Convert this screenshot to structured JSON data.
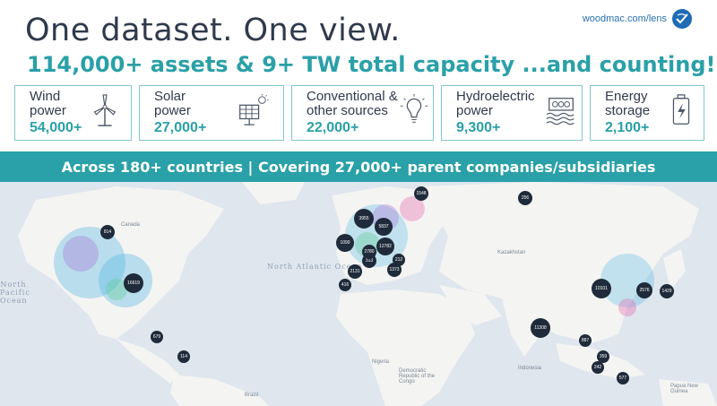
{
  "header": {
    "headline": "One dataset. One view.",
    "subhead": "114,000+ assets & 9+ TW total capacity ...and counting!",
    "brand_text": "woodmac.com/lens"
  },
  "cards": [
    {
      "label": "Wind power",
      "value": "54,000+",
      "icon": "wind-turbine-icon"
    },
    {
      "label": "Solar power",
      "value": "27,000+",
      "icon": "solar-panel-icon"
    },
    {
      "label": "Conventional & other sources",
      "value": "22,000+",
      "icon": "lightbulb-icon"
    },
    {
      "label": "Hydroelectric power",
      "value": "9,300+",
      "icon": "hydro-dam-icon"
    },
    {
      "label": "Energy storage",
      "value": "2,100+",
      "icon": "battery-icon"
    }
  ],
  "banner": "Across 180+ countries | Covering 27,000+ parent companies/subsidiaries",
  "map": {
    "ocean_labels": [
      "North Atlantic Ocean",
      "North Pacific Ocean"
    ],
    "place_labels": [
      "Canada",
      "Kazakhstan",
      "Brazil",
      "Nigeria",
      "Democratic Republic of the Congo",
      "Indonesia",
      "Papua New Guinea"
    ],
    "clusters": [
      "814",
      "16619",
      "1548",
      "3955",
      "5837",
      "12782",
      "1090",
      "256",
      "2131",
      "416",
      "313",
      "2780",
      "212",
      "1373",
      "10101",
      "2576",
      "1429",
      "11308",
      "679",
      "114",
      "887",
      "242",
      "577",
      "359"
    ]
  },
  "colors": {
    "accent": "#2aa0a8",
    "dark_text": "#2f3a4c",
    "map_land": "#f4f4f2",
    "map_sea": "#dfe6ee",
    "cluster": "#1f2b3a"
  }
}
